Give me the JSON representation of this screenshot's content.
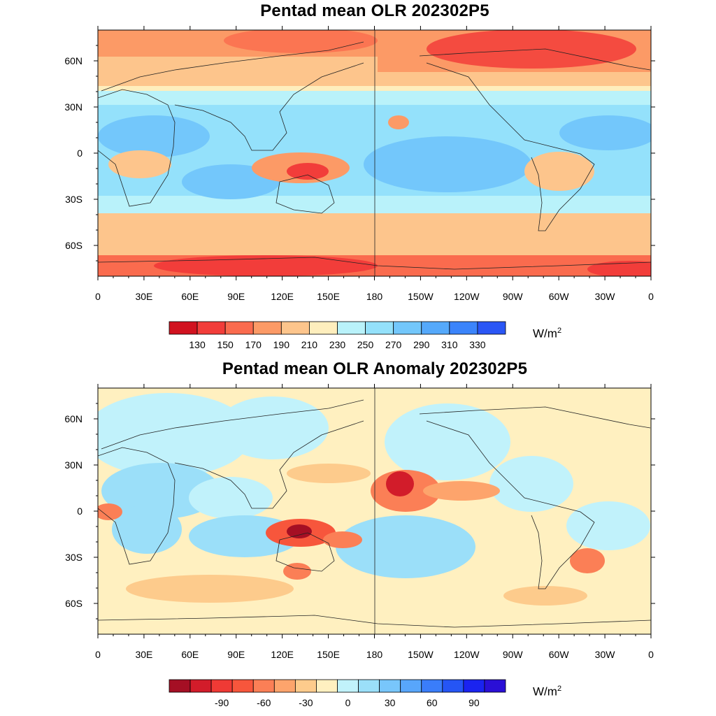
{
  "panels": [
    {
      "title": "Pentad mean OLR 202302P5",
      "colorbar": {
        "colors": [
          "#d1121f",
          "#f23d3a",
          "#fa6b4e",
          "#fc9a66",
          "#fdc58c",
          "#feeebd",
          "#b9f2fa",
          "#94e1fb",
          "#73c7fb",
          "#55a9fb",
          "#3b84fb",
          "#2a56f5"
        ],
        "tick_labels": [
          "130",
          "150",
          "170",
          "190",
          "210",
          "230",
          "250",
          "270",
          "290",
          "310",
          "330"
        ],
        "unit_main": "W/m",
        "unit_sup": "2"
      }
    },
    {
      "title": "Pentad mean OLR Anomaly 202302P5",
      "colorbar": {
        "colors": [
          "#a50f24",
          "#d21c2a",
          "#ef3a35",
          "#f7563c",
          "#fb7f56",
          "#fda46c",
          "#fdcb8c",
          "#fff0c0",
          "#c1f2fb",
          "#9bdff9",
          "#78c6fb",
          "#58a6fb",
          "#3a7dfa",
          "#2555f5",
          "#1a23f0",
          "#2a0fd6"
        ],
        "tick_labels": [
          "-90",
          "-60",
          "-30",
          "0",
          "30",
          "60",
          "90"
        ],
        "tick_positions": [
          1.5,
          3.5,
          5.5,
          7.5,
          9.5,
          11.5,
          13.5
        ],
        "unit_main": "W/m",
        "unit_sup": "2"
      }
    }
  ],
  "axes": {
    "lon_labels": [
      "0",
      "30E",
      "60E",
      "90E",
      "120E",
      "150E",
      "180",
      "150W",
      "120W",
      "90W",
      "60W",
      "30W",
      "0"
    ],
    "lat_labels": [
      "60N",
      "30N",
      "0",
      "30S",
      "60S"
    ],
    "lat_values": [
      60,
      30,
      0,
      -30,
      -60
    ],
    "lat_range": [
      -80,
      80
    ],
    "lon_range": [
      0,
      360
    ]
  },
  "map_style": {
    "mean_field": [
      "#fdc58c",
      "#feeebd",
      "#b9f2fa",
      "#94e1fb",
      "#73c7fb"
    ],
    "anomaly_field": [
      "#fdcb8c",
      "#fff0c0",
      "#c1f2fb",
      "#9bdff9"
    ]
  }
}
